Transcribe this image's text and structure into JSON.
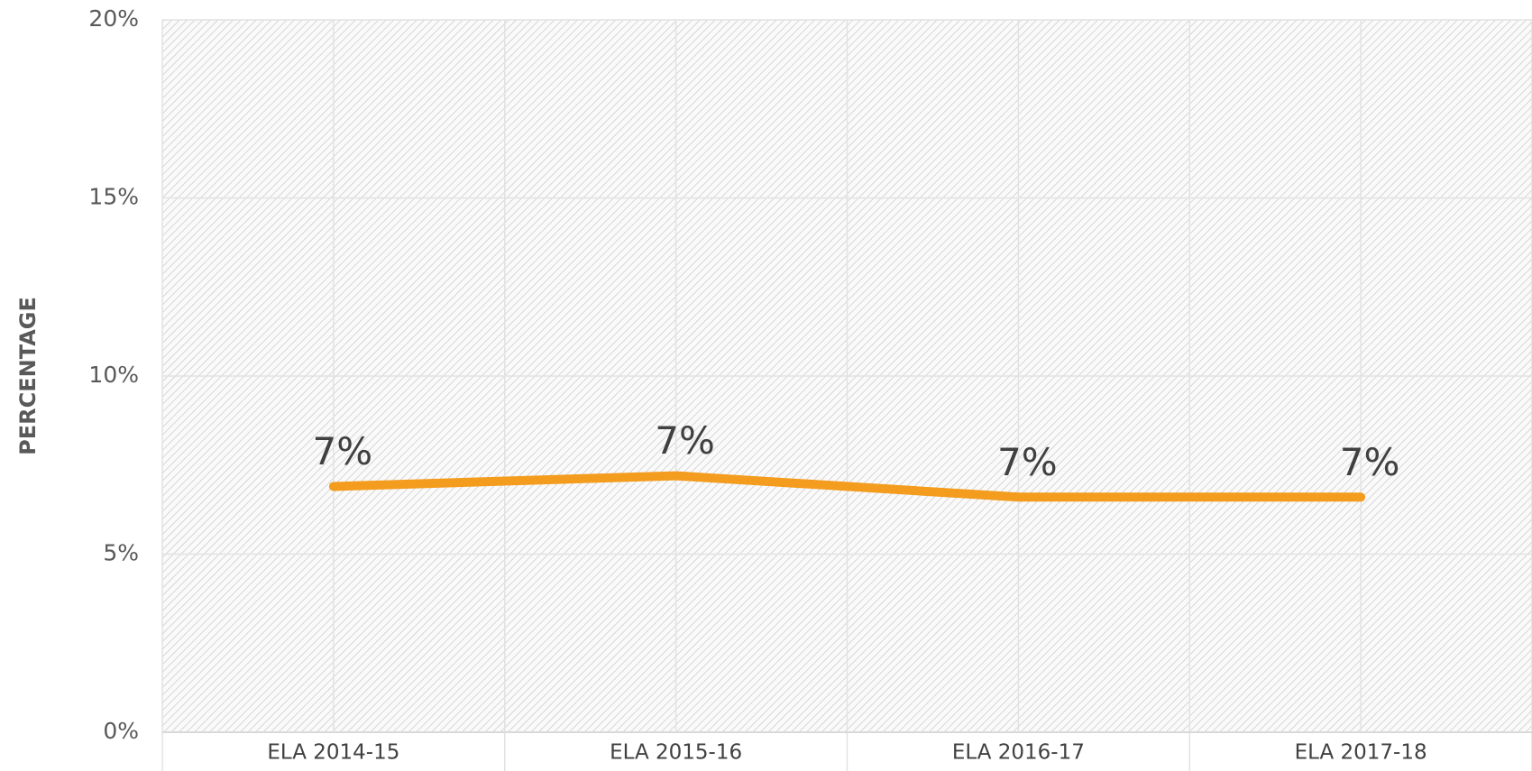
{
  "chart_data": {
    "type": "line",
    "y_label": "PERCENTAGE",
    "categories": [
      "ELA 2014-15",
      "ELA 2015-16",
      "ELA 2016-17",
      "ELA 2017-18"
    ],
    "series": [
      {
        "name": "ELA",
        "color": "#f39c1d",
        "values": [
          6.9,
          7.2,
          6.6,
          6.6
        ],
        "value_labels": [
          "7%",
          "7%",
          "7%",
          "7%"
        ]
      }
    ],
    "ylim": [
      0,
      20
    ],
    "yticks": [
      {
        "value": 0,
        "label": "0%"
      },
      {
        "value": 5,
        "label": "5%"
      },
      {
        "value": 10,
        "label": "10%"
      },
      {
        "value": 15,
        "label": "15%"
      },
      {
        "value": 20,
        "label": "20%"
      }
    ],
    "grid": true
  }
}
